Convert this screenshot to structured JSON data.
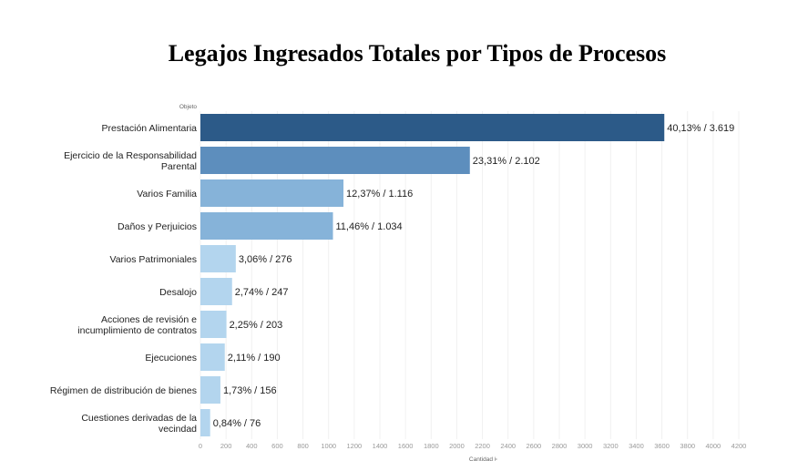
{
  "chart_data": {
    "type": "bar",
    "orientation": "horizontal",
    "title": "Legajos Ingresados Totales por Tipos de Procesos",
    "ylabel": "Objeto",
    "xlabel": "Cantidad",
    "xlim": [
      0,
      4300
    ],
    "xticks": [
      0,
      200,
      400,
      600,
      800,
      1000,
      1200,
      1400,
      1600,
      1800,
      2000,
      2200,
      2400,
      2600,
      2800,
      3000,
      3200,
      3400,
      3600,
      3800,
      4000,
      4200
    ],
    "grid": true,
    "categories": [
      [
        "Prestación Alimentaria"
      ],
      [
        "Ejercicio de la Responsabilidad",
        "Parental"
      ],
      [
        "Varios Familia"
      ],
      [
        "Daños y Perjuicios"
      ],
      [
        "Varios Patrimoniales"
      ],
      [
        "Desalojo"
      ],
      [
        "Acciones de revisión e",
        "incumplimiento de contratos"
      ],
      [
        "Ejecuciones"
      ],
      [
        "Régimen de distribución de bienes"
      ],
      [
        "Cuestiones derivadas de la",
        "vecindad"
      ]
    ],
    "values": [
      3619,
      2102,
      1116,
      1034,
      276,
      247,
      203,
      190,
      156,
      76
    ],
    "data_labels": [
      "40,13% / 3.619",
      "23,31% / 2.102",
      "12,37% / 1.116",
      "11,46% / 1.034",
      "3,06% / 276",
      "2,74% / 247",
      "2,25% / 203",
      "2,11% / 190",
      "1,73% / 156",
      "0,84% / 76"
    ],
    "colors": [
      "#2c5a88",
      "#5d8ebd",
      "#86b3d9",
      "#86b3d9",
      "#b3d5ee",
      "#b3d5ee",
      "#b3d5ee",
      "#b3d5ee",
      "#b3d5ee",
      "#b3d5ee"
    ]
  }
}
